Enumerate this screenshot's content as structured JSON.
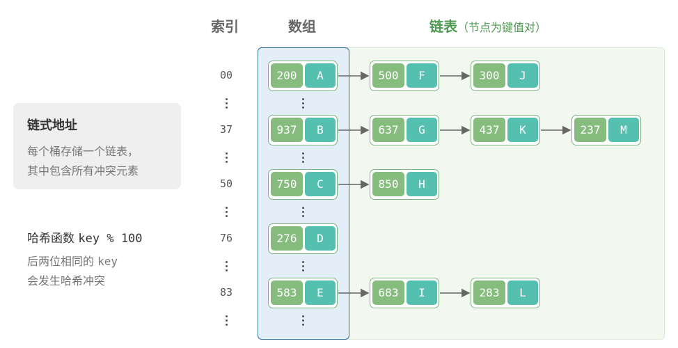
{
  "header": {
    "index": "索引",
    "array": "数组",
    "chain": "链表",
    "chain_sub": "（节点为键值对）"
  },
  "info": {
    "title": "链式地址",
    "line1": "每个桶存储一个链表，",
    "line2": "其中包含所有冲突元素"
  },
  "hash": {
    "title_prefix": "哈希函数",
    "title_code": "key % 100",
    "line1_prefix": "后两位相同的",
    "line1_code": "key",
    "line2": "会发生哈希冲突"
  },
  "indices": [
    "00",
    "37",
    "50",
    "76",
    "83"
  ],
  "buckets": [
    {
      "key": "200",
      "val": "A"
    },
    {
      "key": "937",
      "val": "B"
    },
    {
      "key": "750",
      "val": "C"
    },
    {
      "key": "276",
      "val": "D"
    },
    {
      "key": "583",
      "val": "E"
    }
  ],
  "chains": [
    [
      {
        "key": "500",
        "val": "F"
      },
      {
        "key": "300",
        "val": "J"
      }
    ],
    [
      {
        "key": "637",
        "val": "G"
      },
      {
        "key": "437",
        "val": "K"
      },
      {
        "key": "237",
        "val": "M"
      }
    ],
    [
      {
        "key": "850",
        "val": "H"
      }
    ],
    [],
    [
      {
        "key": "683",
        "val": "I"
      },
      {
        "key": "283",
        "val": "L"
      }
    ]
  ],
  "colors": {
    "key_fill": "#86bc7e",
    "value_fill": "#55bfb0",
    "bucket_column": "#e3eef8",
    "chain_area": "#f2f7f0",
    "arrow": "#666666"
  }
}
